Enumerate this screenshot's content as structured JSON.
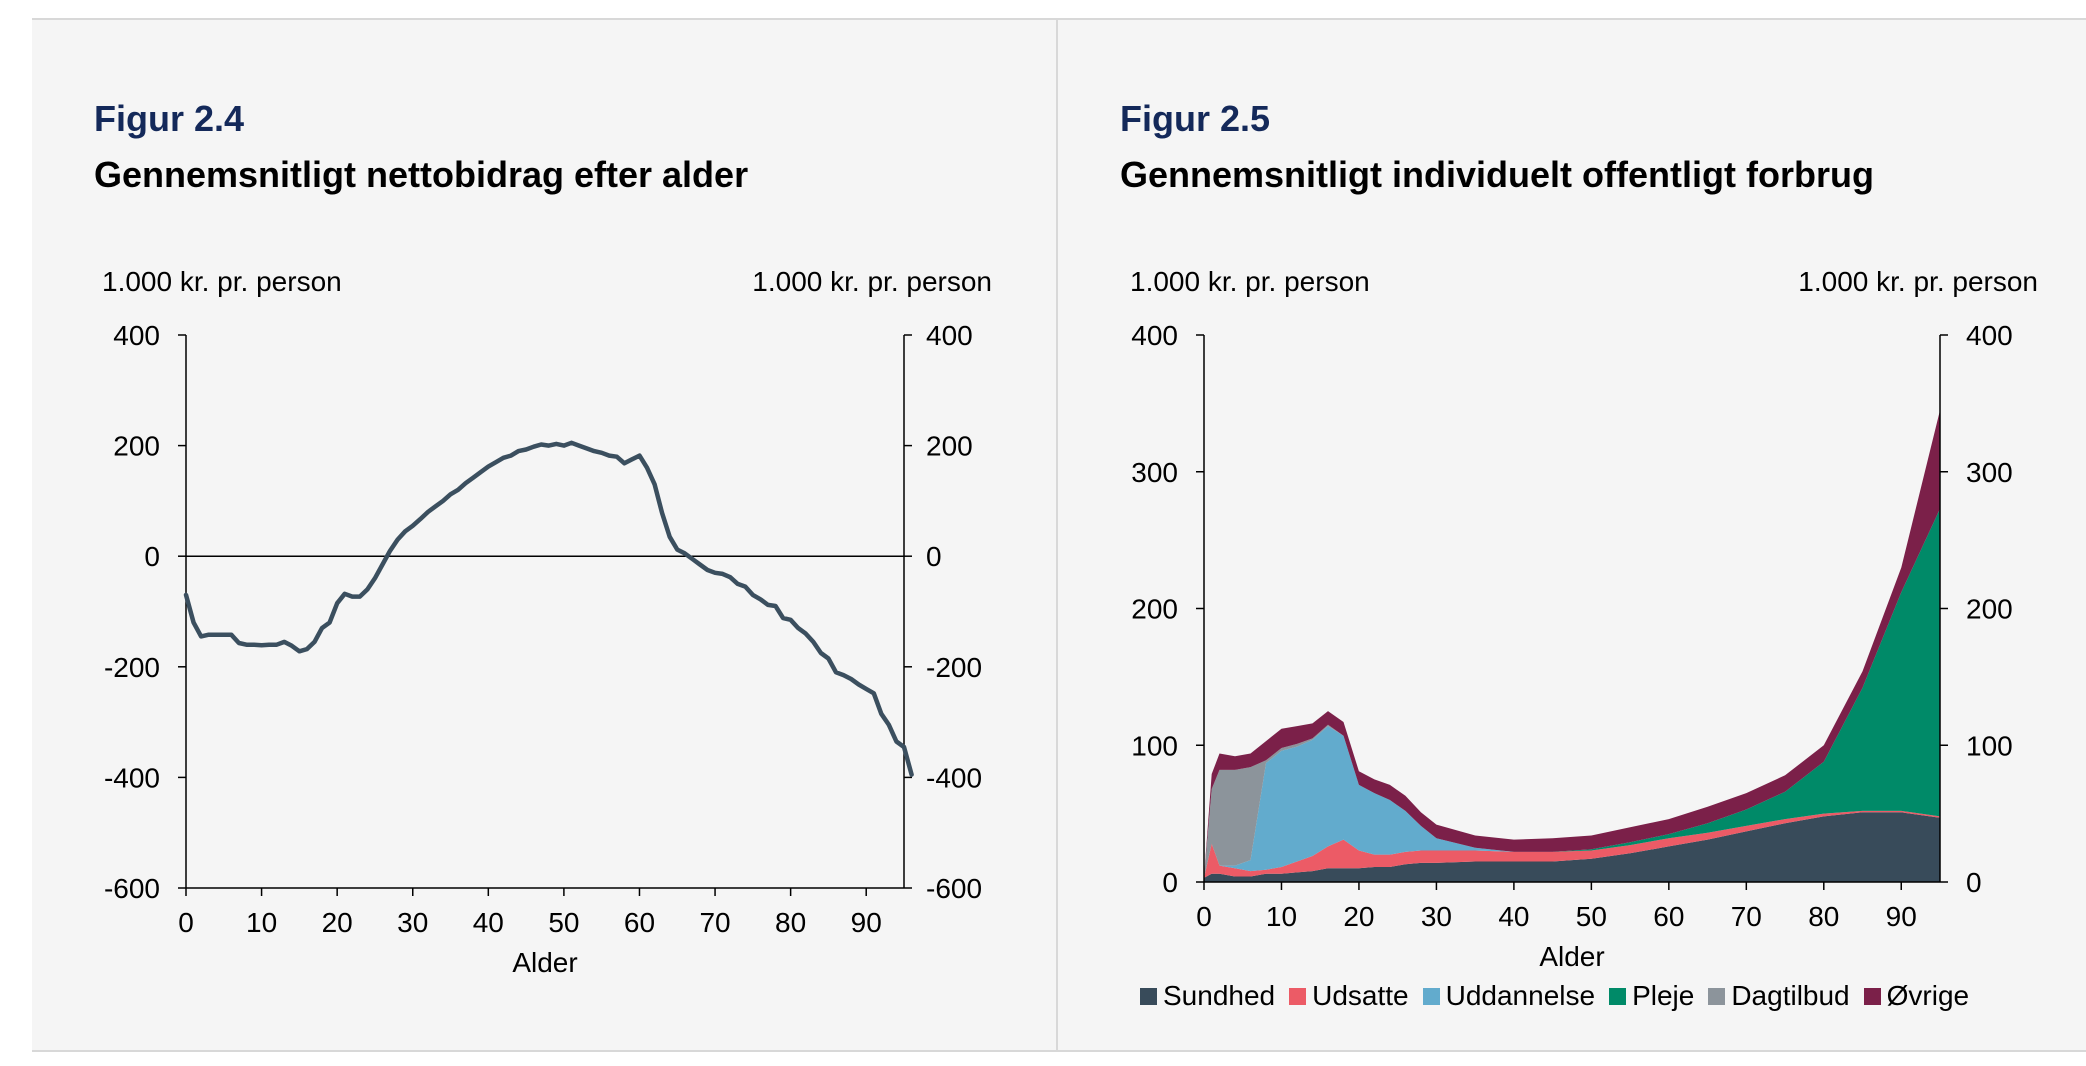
{
  "figures": [
    {
      "number": "Figur 2.4",
      "title": "Gennemsnitligt nettobidrag efter alder",
      "unit_left": "1.000 kr. pr. person",
      "unit_right": "1.000 kr. pr. person"
    },
    {
      "number": "Figur 2.5",
      "title": "Gennemsnitligt individuelt offentligt forbrug",
      "unit_left": "1.000 kr. pr. person",
      "unit_right": "1.000 kr. pr. person"
    }
  ],
  "colors": {
    "line": "#3b4f5f",
    "Sundhed": "#384b5a",
    "Udsatte": "#ec5b66",
    "Uddannelse": "#62abcd",
    "Pleje": "#008a68",
    "Dagtilbud": "#8c949b",
    "Øvrige": "#7b2049"
  },
  "chart_data": [
    {
      "type": "line",
      "xlabel": "Alder",
      "ylabel": "1.000 kr. pr. person",
      "xlim": [
        0,
        95
      ],
      "ylim": [
        -600,
        400
      ],
      "xticks": [
        0,
        10,
        20,
        30,
        40,
        50,
        60,
        70,
        80,
        90
      ],
      "yticks": [
        400,
        200,
        0,
        -200,
        -400,
        -600
      ],
      "zero_line": true,
      "grid": false,
      "series": [
        {
          "values": [
            -70,
            -120,
            -145,
            -142,
            -142,
            -142,
            -142,
            -157,
            -160,
            -160,
            -161,
            -160,
            -160,
            -155,
            -162,
            -172,
            -168,
            -155,
            -130,
            -120,
            -85,
            -68,
            -73,
            -73,
            -60,
            -40,
            -15,
            10,
            30,
            45,
            55,
            67,
            80,
            90,
            100,
            112,
            120,
            132,
            142,
            152,
            162,
            170,
            178,
            182,
            190,
            193,
            198,
            202,
            200,
            203,
            200,
            205,
            200,
            195,
            190,
            187,
            182,
            180,
            168,
            175,
            182,
            160,
            130,
            78,
            35,
            12,
            5,
            -5,
            -15,
            -25,
            -30,
            -32,
            -38,
            -50,
            -55,
            -70,
            -78,
            -88,
            -90,
            -112,
            -115,
            -130,
            -140,
            -155,
            -175,
            -185,
            -210,
            -215,
            -222,
            -232,
            -240,
            -248,
            -285,
            -305,
            -335,
            -345,
            -395
          ]
        }
      ]
    },
    {
      "type": "area",
      "stacked": true,
      "xlabel": "Alder",
      "ylabel": "1.000 kr. pr. person",
      "xlim": [
        0,
        95
      ],
      "ylim": [
        0,
        400
      ],
      "xticks": [
        0,
        10,
        20,
        30,
        40,
        50,
        60,
        70,
        80,
        90
      ],
      "yticks": [
        0,
        100,
        200,
        300,
        400
      ],
      "legend_position": "bottom",
      "grid": false,
      "age_points": [
        0,
        1,
        2,
        4,
        6,
        8,
        10,
        12,
        14,
        16,
        18,
        20,
        22,
        24,
        26,
        28,
        30,
        35,
        40,
        45,
        50,
        55,
        60,
        65,
        70,
        75,
        80,
        85,
        90,
        95
      ],
      "series": [
        {
          "name": "Sundhed",
          "values": [
            3,
            6,
            6,
            4,
            4,
            6,
            6,
            7,
            8,
            10,
            10,
            10,
            11,
            11,
            13,
            14,
            14,
            15,
            15,
            15,
            17,
            21,
            26,
            31,
            37,
            43,
            48,
            51,
            51,
            47
          ]
        },
        {
          "name": "Udsatte",
          "values": [
            0,
            22,
            6,
            6,
            4,
            3,
            5,
            8,
            11,
            16,
            21,
            13,
            9,
            9,
            9,
            9,
            9,
            8,
            7,
            7,
            6,
            6,
            6,
            5,
            4,
            3,
            2,
            1,
            1,
            1
          ]
        },
        {
          "name": "Uddannelse",
          "values": [
            0,
            0,
            0,
            2,
            8,
            78,
            85,
            84,
            85,
            88,
            76,
            48,
            45,
            40,
            30,
            18,
            9,
            2,
            0,
            0,
            0,
            0,
            0,
            0,
            0,
            0,
            0,
            0,
            0,
            0
          ]
        },
        {
          "name": "Pleje",
          "values": [
            0,
            0,
            0,
            0,
            0,
            0,
            0,
            0,
            0,
            0,
            0,
            0,
            0,
            0,
            0,
            0,
            0,
            0,
            0,
            0,
            1,
            2,
            3,
            7,
            12,
            20,
            38,
            90,
            160,
            225
          ]
        },
        {
          "name": "Dagtilbud",
          "values": [
            0,
            40,
            70,
            70,
            68,
            2,
            2,
            2,
            1,
            1,
            0,
            0,
            0,
            0,
            0,
            0,
            0,
            0,
            0,
            0,
            0,
            0,
            0,
            0,
            0,
            0,
            0,
            0,
            0,
            0
          ]
        },
        {
          "name": "Øvrige",
          "values": [
            0,
            11,
            12,
            10,
            10,
            14,
            14,
            13,
            11,
            10,
            10,
            10,
            10,
            11,
            11,
            10,
            10,
            9,
            9,
            10,
            10,
            11,
            11,
            12,
            12,
            12,
            12,
            12,
            18,
            72
          ]
        }
      ]
    }
  ]
}
